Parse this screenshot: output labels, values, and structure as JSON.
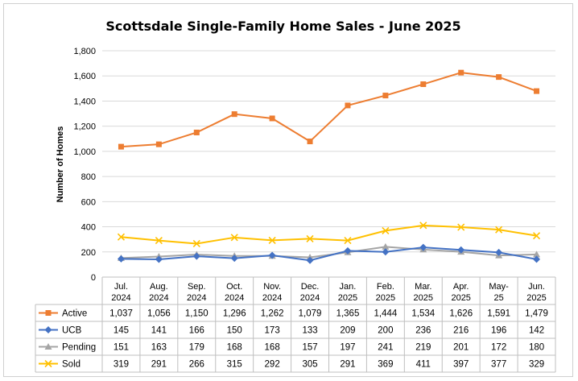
{
  "chart_data": {
    "type": "line",
    "title": "Scottsdale Single-Family Home Sales - June 2025",
    "ylabel": "Number of Homes",
    "xlabel": "",
    "ylim": [
      0,
      1800
    ],
    "yticks": [
      "0",
      "200",
      "400",
      "600",
      "800",
      "1,000",
      "1,200",
      "1,400",
      "1,600",
      "1,800"
    ],
    "grid": true,
    "legend": "data-table-below",
    "categories": [
      [
        "Jul.",
        "2024"
      ],
      [
        "Aug.",
        "2024"
      ],
      [
        "Sep.",
        "2024"
      ],
      [
        "Oct.",
        "2024"
      ],
      [
        "Nov.",
        "2024"
      ],
      [
        "Dec.",
        "2024"
      ],
      [
        "Jan.",
        "2025"
      ],
      [
        "Feb.",
        "2025"
      ],
      [
        "Mar.",
        "2025"
      ],
      [
        "Apr.",
        "2025"
      ],
      [
        "May-",
        "25"
      ],
      [
        "Jun.",
        "2025"
      ]
    ],
    "series": [
      {
        "name": "Active",
        "color": "#ED7D31",
        "marker": "square",
        "values": [
          1037,
          1056,
          1150,
          1296,
          1262,
          1079,
          1365,
          1444,
          1534,
          1626,
          1591,
          1479
        ],
        "labels": [
          "1,037",
          "1,056",
          "1,150",
          "1,296",
          "1,262",
          "1,079",
          "1,365",
          "1,444",
          "1,534",
          "1,626",
          "1,591",
          "1,479"
        ]
      },
      {
        "name": "UCB",
        "color": "#4472C4",
        "marker": "diamond",
        "values": [
          145,
          141,
          166,
          150,
          173,
          133,
          209,
          200,
          236,
          216,
          196,
          142
        ],
        "labels": [
          "145",
          "141",
          "166",
          "150",
          "173",
          "133",
          "209",
          "200",
          "236",
          "216",
          "196",
          "142"
        ]
      },
      {
        "name": "Pending",
        "color": "#A5A5A5",
        "marker": "triangle",
        "values": [
          151,
          163,
          179,
          168,
          168,
          157,
          197,
          241,
          219,
          201,
          172,
          180
        ],
        "labels": [
          "151",
          "163",
          "179",
          "168",
          "168",
          "157",
          "197",
          "241",
          "219",
          "201",
          "172",
          "180"
        ]
      },
      {
        "name": "Sold",
        "color": "#FFC000",
        "marker": "x",
        "values": [
          319,
          291,
          266,
          315,
          292,
          305,
          291,
          369,
          411,
          397,
          377,
          329
        ],
        "labels": [
          "319",
          "291",
          "266",
          "315",
          "292",
          "305",
          "291",
          "369",
          "411",
          "397",
          "377",
          "329"
        ]
      }
    ]
  }
}
